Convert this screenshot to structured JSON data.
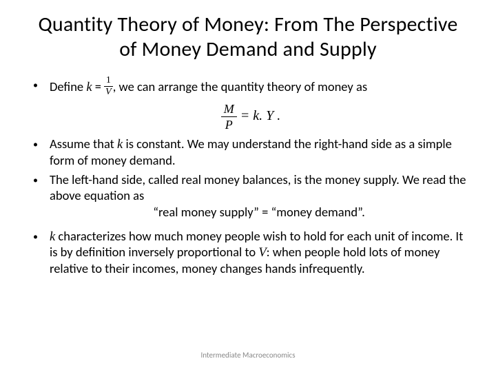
{
  "title": "Quantity Theory of Money: From The Perspective of Money Demand and Supply",
  "bullets": {
    "b1_pre": "Define ",
    "b1_k": "k",
    "b1_eq": " = ",
    "b1_frac_num": "1",
    "b1_frac_den": "V",
    "b1_post": ", we can arrange the quantity theory of money as",
    "eq_num": "M",
    "eq_den": "P",
    "eq_rhs": " = k. Y .",
    "b2_pre": "Assume that ",
    "b2_k": "k",
    "b2_post": " is constant. We may understand the right-hand side as a simple form of money demand.",
    "b3": "The left-hand side, called real money balances, is the money supply. We read the above equation as",
    "b3_eq": "“real money supply” = “money demand”.",
    "b4_k": "k",
    "b4_mid": " characterizes how much money people wish to hold for each unit of income. It is by definition inversely proportional to ",
    "b4_v": "V",
    "b4_post": ":  when people hold lots of money relative to their incomes, money changes hands infrequently."
  },
  "footer": "Intermediate Macroeconomics",
  "style": {
    "background_color": "#ffffff",
    "text_color": "#000000",
    "footer_color": "#888888",
    "title_fontsize": 30,
    "body_fontsize": 18.5,
    "footer_fontsize": 11,
    "font_family_body": "Calibri",
    "font_family_math": "Cambria Math"
  }
}
